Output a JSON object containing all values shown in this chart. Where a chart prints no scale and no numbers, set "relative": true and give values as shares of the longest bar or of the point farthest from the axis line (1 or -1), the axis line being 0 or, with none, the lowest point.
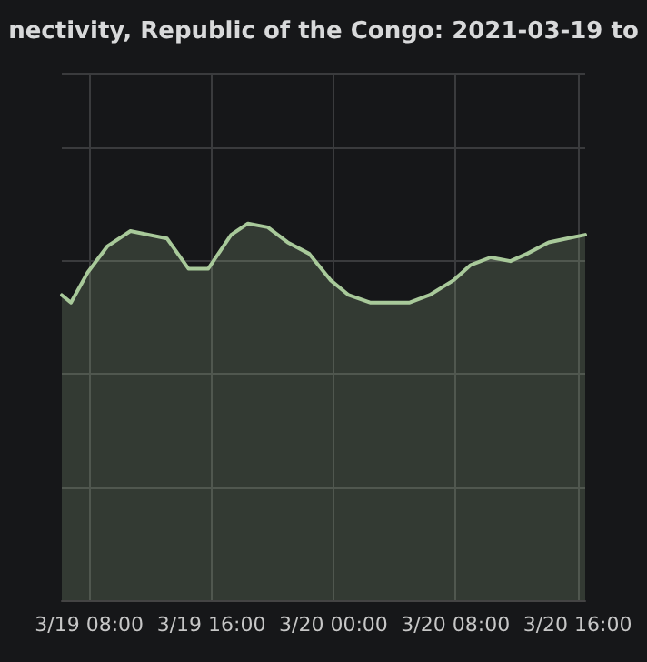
{
  "chart_data": {
    "type": "area",
    "title": "nectivity, Republic of the Congo: 2021-03-19 to",
    "relative": true,
    "grid": true,
    "marker": "none",
    "xlim": [
      "2021-03-19T06:12",
      "2021-03-20T16:30"
    ],
    "xticks": [
      {
        "value": "2021-03-19T08:00",
        "label": "3/19 08:00"
      },
      {
        "value": "2021-03-19T16:00",
        "label": "3/19 16:00"
      },
      {
        "value": "2021-03-20T00:00",
        "label": "3/20 00:00"
      },
      {
        "value": "2021-03-20T08:00",
        "label": "3/20 08:00"
      },
      {
        "value": "2021-03-20T16:00",
        "label": "3/20 16:00"
      }
    ],
    "series": [
      {
        "color": "#a8c99a",
        "x": [
          "2021-03-19T06:12",
          "2021-03-19T06:48",
          "2021-03-19T07:54",
          "2021-03-19T09:12",
          "2021-03-19T10:42",
          "2021-03-19T13:06",
          "2021-03-19T14:30",
          "2021-03-19T15:48",
          "2021-03-19T17:18",
          "2021-03-19T18:24",
          "2021-03-19T19:42",
          "2021-03-19T21:00",
          "2021-03-19T22:24",
          "2021-03-19T23:48",
          "2021-03-20T01:00",
          "2021-03-20T02:24",
          "2021-03-20T03:42",
          "2021-03-20T05:00",
          "2021-03-20T06:18",
          "2021-03-20T07:54",
          "2021-03-20T09:00",
          "2021-03-20T10:18",
          "2021-03-20T11:36",
          "2021-03-20T12:42",
          "2021-03-20T14:06",
          "2021-03-20T15:18",
          "2021-03-20T16:30"
        ],
        "values": [
          0.81,
          0.79,
          0.87,
          0.94,
          0.98,
          0.96,
          0.88,
          0.88,
          0.97,
          1,
          0.99,
          0.95,
          0.92,
          0.85,
          0.81,
          0.79,
          0.79,
          0.79,
          0.81,
          0.85,
          0.89,
          0.91,
          0.9,
          0.92,
          0.95,
          0.96,
          0.97
        ]
      }
    ]
  }
}
